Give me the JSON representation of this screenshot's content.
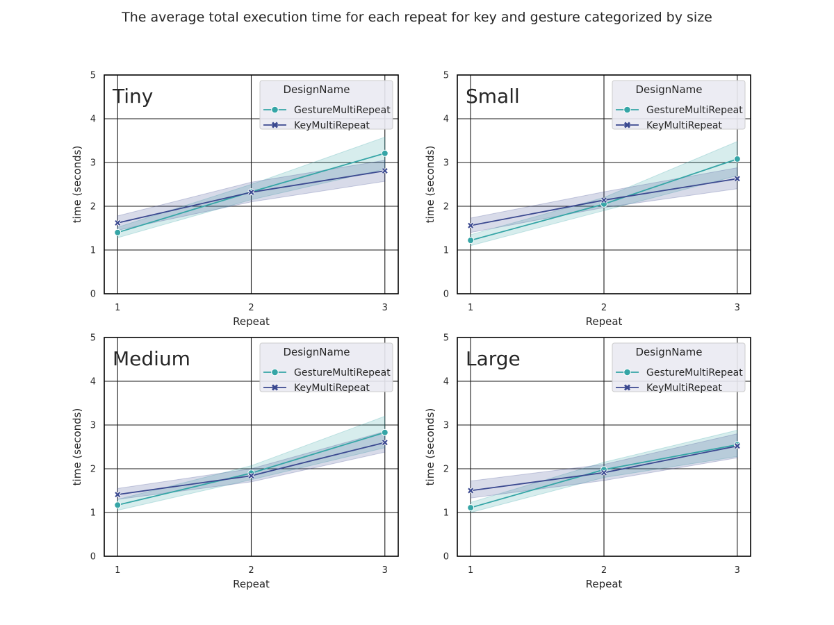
{
  "title": "The average total execution time for each repeat for key and gesture categorized by size",
  "colors": {
    "gesture": "#35a5a6",
    "key": "#3b4990",
    "grid": "#1a1a1a",
    "legend_bg": "#eaeaf2"
  },
  "chart_data": [
    {
      "type": "line",
      "label": "Tiny",
      "xlabel": "Repeat",
      "ylabel": "time (seconds)",
      "x": [
        1,
        2,
        3
      ],
      "xlim": [
        0.9,
        3.1
      ],
      "ylim": [
        0,
        5
      ],
      "xticks": [
        "1",
        "2",
        "3"
      ],
      "yticks": [
        "0",
        "1",
        "2",
        "3",
        "4",
        "5"
      ],
      "legend": {
        "title": "DesignName",
        "placement": "upper right"
      },
      "series": [
        {
          "name": "GestureMultiRepeat",
          "marker": "circle",
          "values": [
            1.4,
            2.33,
            3.21
          ],
          "ci_low": [
            1.28,
            2.15,
            2.85
          ],
          "ci_high": [
            1.52,
            2.5,
            3.58
          ]
        },
        {
          "name": "KeyMultiRepeat",
          "marker": "x",
          "values": [
            1.62,
            2.32,
            2.81
          ],
          "ci_low": [
            1.45,
            2.1,
            2.57
          ],
          "ci_high": [
            1.78,
            2.55,
            3.05
          ]
        }
      ]
    },
    {
      "type": "line",
      "label": "Small",
      "xlabel": "Repeat",
      "ylabel": "time (seconds)",
      "x": [
        1,
        2,
        3
      ],
      "xlim": [
        0.9,
        3.1
      ],
      "ylim": [
        0,
        5
      ],
      "xticks": [
        "1",
        "2",
        "3"
      ],
      "yticks": [
        "0",
        "1",
        "2",
        "3",
        "4",
        "5"
      ],
      "legend": {
        "title": "DesignName",
        "placement": "upper right"
      },
      "series": [
        {
          "name": "GestureMultiRepeat",
          "marker": "circle",
          "values": [
            1.22,
            2.05,
            3.08
          ],
          "ci_low": [
            1.1,
            1.9,
            2.7
          ],
          "ci_high": [
            1.35,
            2.2,
            3.48
          ]
        },
        {
          "name": "KeyMultiRepeat",
          "marker": "x",
          "values": [
            1.56,
            2.14,
            2.63
          ],
          "ci_low": [
            1.4,
            1.97,
            2.4
          ],
          "ci_high": [
            1.73,
            2.33,
            2.88
          ]
        }
      ]
    },
    {
      "type": "line",
      "label": "Medium",
      "xlabel": "Repeat",
      "ylabel": "time (seconds)",
      "x": [
        1,
        2,
        3
      ],
      "xlim": [
        0.9,
        3.1
      ],
      "ylim": [
        0,
        5
      ],
      "xticks": [
        "1",
        "2",
        "3"
      ],
      "yticks": [
        "0",
        "1",
        "2",
        "3",
        "4",
        "5"
      ],
      "legend": {
        "title": "DesignName",
        "placement": "upper right"
      },
      "series": [
        {
          "name": "GestureMultiRepeat",
          "marker": "circle",
          "values": [
            1.17,
            1.9,
            2.83
          ],
          "ci_low": [
            1.05,
            1.75,
            2.48
          ],
          "ci_high": [
            1.3,
            2.07,
            3.2
          ]
        },
        {
          "name": "KeyMultiRepeat",
          "marker": "x",
          "values": [
            1.41,
            1.84,
            2.6
          ],
          "ci_low": [
            1.3,
            1.7,
            2.38
          ],
          "ci_high": [
            1.55,
            2.0,
            2.85
          ]
        }
      ]
    },
    {
      "type": "line",
      "label": "Large",
      "xlabel": "Repeat",
      "ylabel": "time (seconds)",
      "x": [
        1,
        2,
        3
      ],
      "xlim": [
        0.9,
        3.1
      ],
      "ylim": [
        0,
        5
      ],
      "xticks": [
        "1",
        "2",
        "3"
      ],
      "yticks": [
        "0",
        "1",
        "2",
        "3",
        "4",
        "5"
      ],
      "legend": {
        "title": "DesignName",
        "placement": "upper right"
      },
      "series": [
        {
          "name": "GestureMultiRepeat",
          "marker": "circle",
          "values": [
            1.11,
            1.98,
            2.55
          ],
          "ci_low": [
            1.0,
            1.8,
            2.28
          ],
          "ci_high": [
            1.23,
            2.15,
            2.88
          ]
        },
        {
          "name": "KeyMultiRepeat",
          "marker": "x",
          "values": [
            1.5,
            1.91,
            2.52
          ],
          "ci_low": [
            1.33,
            1.73,
            2.25
          ],
          "ci_high": [
            1.72,
            2.1,
            2.8
          ]
        }
      ]
    }
  ]
}
